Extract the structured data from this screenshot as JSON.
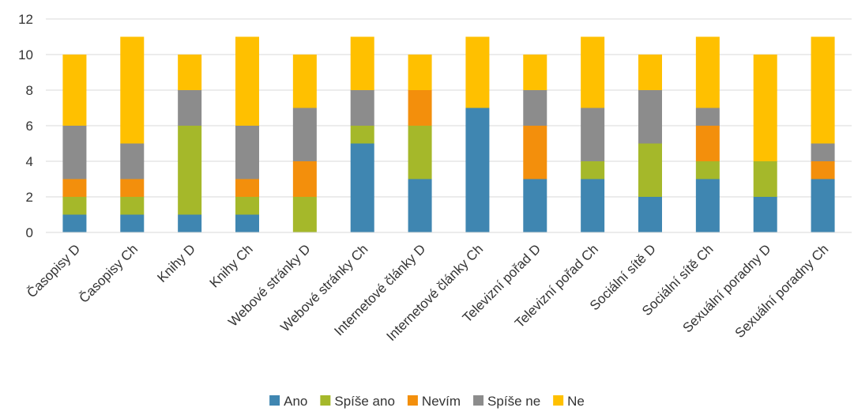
{
  "chart_data": {
    "type": "bar",
    "stacked": true,
    "title": "",
    "xlabel": "",
    "ylabel": "",
    "ylim": [
      0,
      12
    ],
    "yticks": [
      0,
      2,
      4,
      6,
      8,
      10,
      12
    ],
    "grid": true,
    "legend_position": "bottom",
    "categories": [
      "Časopisy D",
      "Časopisy Ch",
      "Knihy D",
      "Knihy Ch",
      "Webové stránky D",
      "Webové stránky Ch",
      "Internetové články D",
      "Internetové články Ch",
      "Televizní pořad D",
      "Televizní pořad Ch",
      "Sociální sítě D",
      "Sociální sítě Ch",
      "Sexuální poradny D",
      "Sexuální poradny Ch"
    ],
    "series": [
      {
        "name": "Ano",
        "color": "#3F86B1",
        "values": [
          1,
          1,
          1,
          1,
          0,
          5,
          3,
          7,
          3,
          3,
          2,
          3,
          2,
          3
        ]
      },
      {
        "name": "Spíše ano",
        "color": "#A5B82A",
        "values": [
          1,
          1,
          5,
          1,
          2,
          1,
          3,
          0,
          0,
          1,
          3,
          1,
          2,
          0
        ]
      },
      {
        "name": "Nevím",
        "color": "#F38F0C",
        "values": [
          1,
          1,
          0,
          1,
          2,
          0,
          2,
          0,
          3,
          0,
          0,
          2,
          0,
          1
        ]
      },
      {
        "name": "Spíše ne",
        "color": "#8C8C8C",
        "values": [
          3,
          2,
          2,
          3,
          3,
          2,
          0,
          0,
          2,
          3,
          3,
          1,
          0,
          1
        ]
      },
      {
        "name": "Ne",
        "color": "#FFC000",
        "values": [
          4,
          6,
          2,
          5,
          3,
          3,
          2,
          4,
          2,
          4,
          2,
          4,
          6,
          6
        ]
      }
    ]
  }
}
